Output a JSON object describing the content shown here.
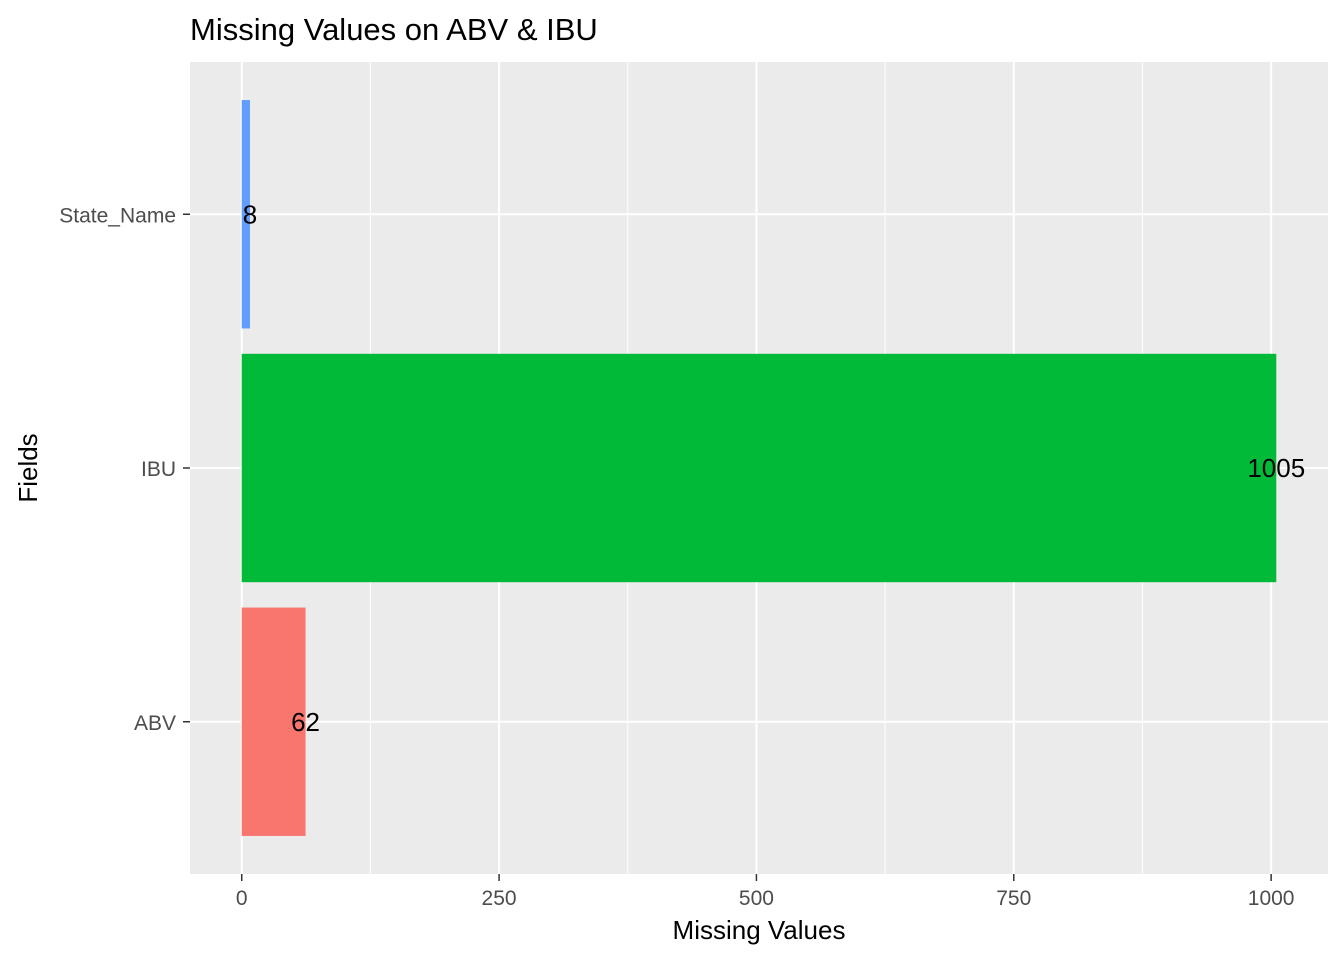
{
  "chart_data": {
    "type": "bar",
    "orientation": "horizontal",
    "title": "Missing Values on ABV & IBU",
    "xlabel": "Missing Values",
    "ylabel": "Fields",
    "categories": [
      "ABV",
      "IBU",
      "State_Name"
    ],
    "values": [
      62,
      1005,
      8
    ],
    "data_labels": [
      "62",
      "1005",
      "8"
    ],
    "bar_colors": [
      "#F8766D",
      "#00BA38",
      "#619CFF"
    ],
    "x_ticks": [
      0,
      250,
      500,
      750,
      1000
    ],
    "x_tick_labels": [
      "0",
      "250",
      "500",
      "750",
      "1000"
    ],
    "xlim": [
      -50.25,
      1055.25
    ],
    "grid": true,
    "legend": "none",
    "panel_background": "#EBEBEB",
    "grid_color": "#FFFFFF"
  }
}
